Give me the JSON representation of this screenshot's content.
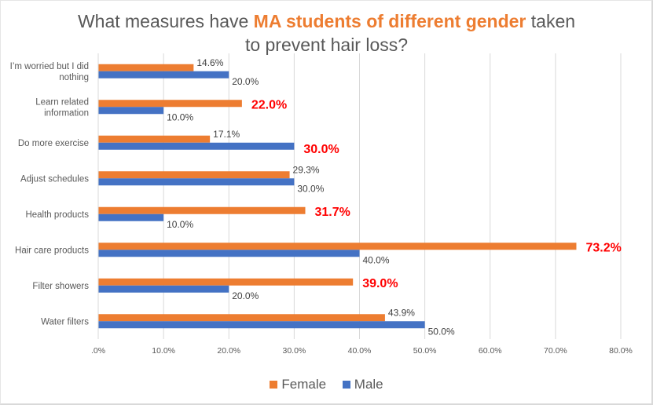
{
  "chart_data": {
    "type": "bar",
    "orientation": "horizontal",
    "title": {
      "parts": [
        {
          "text": "What measures have ",
          "highlight": false
        },
        {
          "text": "MA students of different gender",
          "highlight": true
        },
        {
          "text": " taken",
          "highlight": false
        },
        {
          "text": "to prevent hair loss?",
          "highlight": false,
          "newline": true
        }
      ]
    },
    "categories": [
      [
        "I’m worried but I did",
        "nothing"
      ],
      [
        "Learn related",
        "information"
      ],
      [
        "Do more exercise"
      ],
      [
        "Adjust schedules"
      ],
      [
        "Health products"
      ],
      [
        "Hair care products"
      ],
      [
        "Filter showers"
      ],
      [
        "Water filters"
      ]
    ],
    "series": [
      {
        "name": "Female",
        "color": "#ed7d31",
        "values": [
          14.6,
          22.0,
          17.1,
          29.3,
          31.7,
          73.2,
          39.0,
          43.9
        ],
        "labels": [
          "14.6%",
          "22.0%",
          "17.1%",
          "29.3%",
          "31.7%",
          "73.2%",
          "39.0%",
          "43.9%"
        ],
        "highlight": [
          false,
          true,
          false,
          false,
          true,
          true,
          true,
          false
        ]
      },
      {
        "name": "Male",
        "color": "#4472c4",
        "values": [
          20.0,
          10.0,
          30.0,
          30.0,
          10.0,
          40.0,
          20.0,
          50.0
        ],
        "labels": [
          "20.0%",
          "10.0%",
          "30.0%",
          "30.0%",
          "10.0%",
          "40.0%",
          "20.0%",
          "50.0%"
        ],
        "highlight": [
          false,
          false,
          true,
          false,
          false,
          false,
          false,
          false
        ]
      }
    ],
    "xlim": [
      0,
      80
    ],
    "xticks": [
      ".0%",
      "10.0%",
      "20.0%",
      "30.0%",
      "40.0%",
      "50.0%",
      "60.0%",
      "70.0%",
      "80.0%"
    ],
    "grid": true,
    "legend": {
      "position": "bottom",
      "entries": [
        "Female",
        "Male"
      ]
    },
    "xlabel": "",
    "ylabel": "",
    "highlight_color": "#ff0000"
  }
}
